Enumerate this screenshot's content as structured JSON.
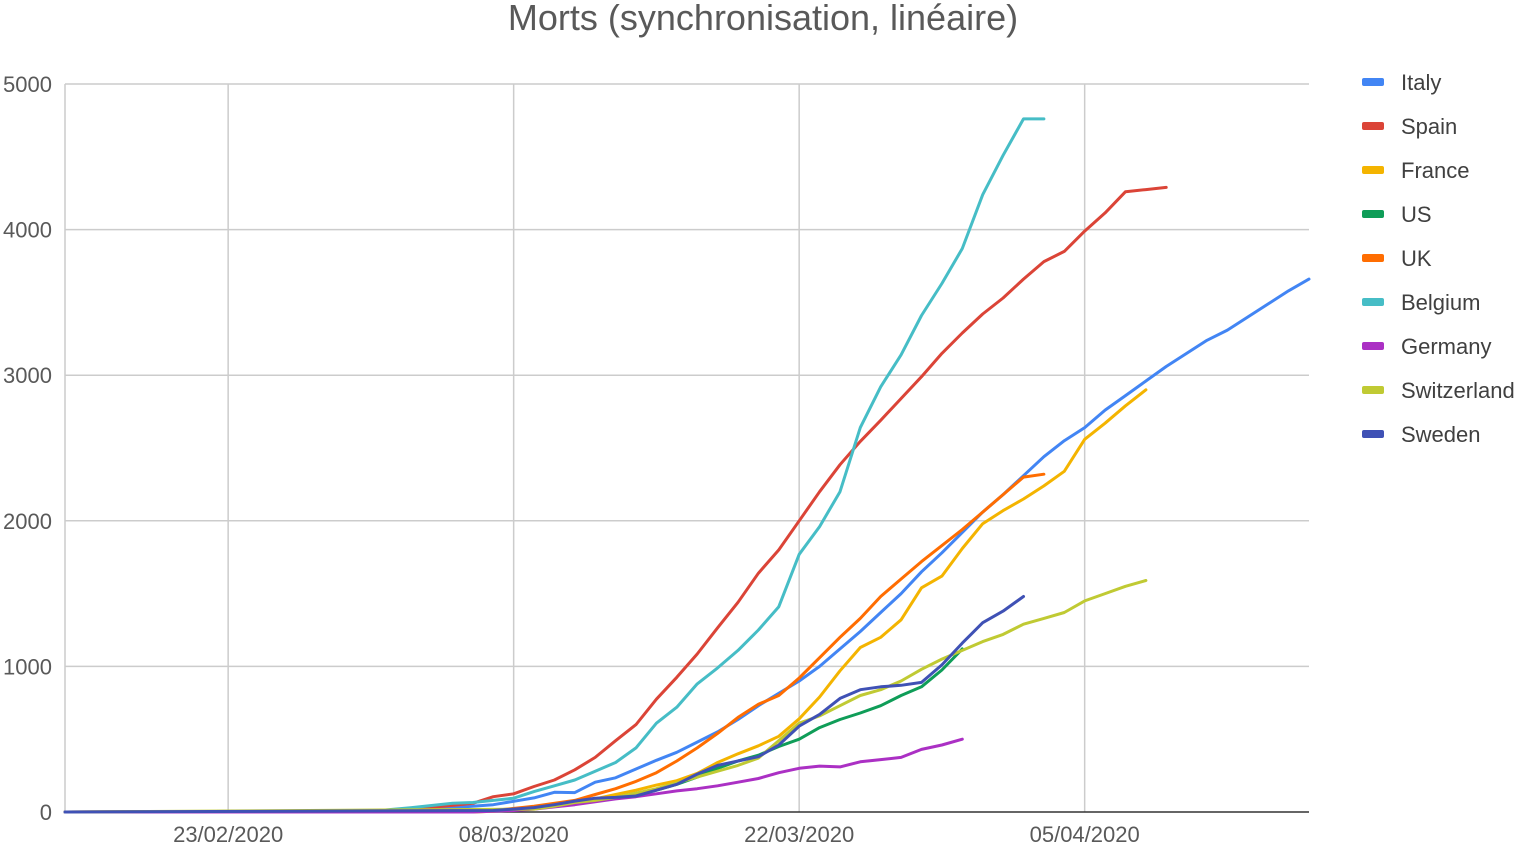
{
  "chart_data": {
    "type": "line",
    "title": "Morts (synchronisation, linéaire)",
    "xlabel": "",
    "ylabel": "",
    "x_start": "2020-02-15",
    "x_end": "2020-04-16",
    "x_ticks": [
      "23/02/2020",
      "08/03/2020",
      "22/03/2020",
      "05/04/2020"
    ],
    "ylim": [
      0,
      5000
    ],
    "y_ticks": [
      "0",
      "1000",
      "2000",
      "3000",
      "4000",
      "5000"
    ],
    "grid": true,
    "legend_position": "right",
    "series": [
      {
        "name": "Italy",
        "color": "#4285f4",
        "x": [
          "2020-02-15",
          "2020-02-28",
          "2020-03-01",
          "2020-03-03",
          "2020-03-05",
          "2020-03-07",
          "2020-03-09",
          "2020-03-10",
          "2020-03-11",
          "2020-03-12",
          "2020-03-13",
          "2020-03-14",
          "2020-03-15",
          "2020-03-16",
          "2020-03-17",
          "2020-03-18",
          "2020-03-19",
          "2020-03-20",
          "2020-03-21",
          "2020-03-22",
          "2020-03-23",
          "2020-03-24",
          "2020-03-25",
          "2020-03-26",
          "2020-03-27",
          "2020-03-28",
          "2020-03-29",
          "2020-03-30",
          "2020-03-31",
          "2020-04-01",
          "2020-04-02",
          "2020-04-03",
          "2020-04-04",
          "2020-04-05",
          "2020-04-06",
          "2020-04-07",
          "2020-04-08",
          "2020-04-09",
          "2020-04-10",
          "2020-04-11",
          "2020-04-12",
          "2020-04-13",
          "2020-04-14",
          "2020-04-15",
          "2020-04-16"
        ],
        "y": [
          0,
          0,
          5,
          15,
          30,
          50,
          97,
          135,
          133,
          205,
          235,
          295,
          355,
          410,
          480,
          550,
          635,
          730,
          815,
          900,
          1000,
          1120,
          1240,
          1370,
          1500,
          1650,
          1780,
          1920,
          2060,
          2180,
          2310,
          2440,
          2550,
          2640,
          2760,
          2860,
          2960,
          3060,
          3150,
          3240,
          3310,
          3400,
          3490,
          3580,
          3660
        ]
      },
      {
        "name": "Spain",
        "color": "#db4437",
        "x": [
          "2020-02-15",
          "2020-03-01",
          "2020-03-03",
          "2020-03-05",
          "2020-03-06",
          "2020-03-07",
          "2020-03-08",
          "2020-03-09",
          "2020-03-10",
          "2020-03-11",
          "2020-03-12",
          "2020-03-13",
          "2020-03-14",
          "2020-03-15",
          "2020-03-16",
          "2020-03-17",
          "2020-03-18",
          "2020-03-19",
          "2020-03-20",
          "2020-03-21",
          "2020-03-22",
          "2020-03-23",
          "2020-03-24",
          "2020-03-25",
          "2020-03-26",
          "2020-03-27",
          "2020-03-28",
          "2020-03-29",
          "2020-03-30",
          "2020-03-31",
          "2020-04-01",
          "2020-04-02",
          "2020-04-03",
          "2020-04-04",
          "2020-04-05",
          "2020-04-06",
          "2020-04-07",
          "2020-04-08",
          "2020-04-09"
        ],
        "y": [
          0,
          5,
          20,
          45,
          60,
          105,
          125,
          175,
          220,
          290,
          375,
          490,
          600,
          775,
          925,
          1085,
          1265,
          1440,
          1640,
          1800,
          2000,
          2200,
          2385,
          2545,
          2690,
          2840,
          2990,
          3150,
          3290,
          3420,
          3530,
          3660,
          3780,
          3850,
          3990,
          4115,
          4260,
          4275,
          4290
        ]
      },
      {
        "name": "France",
        "color": "#f4b400",
        "x": [
          "2020-02-15",
          "2020-03-06",
          "2020-03-07",
          "2020-03-08",
          "2020-03-09",
          "2020-03-10",
          "2020-03-11",
          "2020-03-12",
          "2020-03-13",
          "2020-03-14",
          "2020-03-15",
          "2020-03-16",
          "2020-03-17",
          "2020-03-18",
          "2020-03-19",
          "2020-03-20",
          "2020-03-21",
          "2020-03-22",
          "2020-03-23",
          "2020-03-24",
          "2020-03-25",
          "2020-03-26",
          "2020-03-27",
          "2020-03-28",
          "2020-03-29",
          "2020-03-30",
          "2020-03-31",
          "2020-04-01",
          "2020-04-02",
          "2020-04-03",
          "2020-04-04",
          "2020-04-05",
          "2020-04-06",
          "2020-04-07",
          "2020-04-08"
        ],
        "y": [
          0,
          0,
          5,
          15,
          30,
          50,
          65,
          90,
          120,
          150,
          185,
          215,
          265,
          340,
          400,
          455,
          520,
          640,
          790,
          970,
          1130,
          1200,
          1320,
          1540,
          1620,
          1810,
          1980,
          2070,
          2150,
          2240,
          2340,
          2560,
          2670,
          2790,
          2900
        ]
      },
      {
        "name": "US",
        "color": "#0f9d58",
        "x": [
          "2020-03-14",
          "2020-03-15",
          "2020-03-16",
          "2020-03-17",
          "2020-03-18",
          "2020-03-19",
          "2020-03-20",
          "2020-03-21",
          "2020-03-22",
          "2020-03-23",
          "2020-03-24",
          "2020-03-25",
          "2020-03-26",
          "2020-03-27",
          "2020-03-28",
          "2020-03-29",
          "2020-03-30"
        ],
        "y": [
          120,
          150,
          190,
          240,
          300,
          350,
          390,
          450,
          500,
          580,
          635,
          680,
          730,
          800,
          860,
          975,
          1120
        ]
      },
      {
        "name": "UK",
        "color": "#ff6d01",
        "x": [
          "2020-02-15",
          "2020-03-07",
          "2020-03-09",
          "2020-03-11",
          "2020-03-12",
          "2020-03-13",
          "2020-03-14",
          "2020-03-15",
          "2020-03-16",
          "2020-03-17",
          "2020-03-18",
          "2020-03-19",
          "2020-03-20",
          "2020-03-21",
          "2020-03-22",
          "2020-03-23",
          "2020-03-24",
          "2020-03-25",
          "2020-03-26",
          "2020-03-27",
          "2020-03-28",
          "2020-03-29",
          "2020-03-30",
          "2020-03-31",
          "2020-04-01",
          "2020-04-02",
          "2020-04-03"
        ],
        "y": [
          0,
          10,
          40,
          80,
          120,
          160,
          210,
          270,
          350,
          440,
          540,
          650,
          740,
          800,
          920,
          1060,
          1200,
          1330,
          1480,
          1600,
          1720,
          1830,
          1940,
          2060,
          2180,
          2300,
          2320
        ]
      },
      {
        "name": "Belgium",
        "color": "#46bdc6",
        "x": [
          "2020-02-15",
          "2020-03-01",
          "2020-03-03",
          "2020-03-05",
          "2020-03-06",
          "2020-03-07",
          "2020-03-08",
          "2020-03-09",
          "2020-03-10",
          "2020-03-11",
          "2020-03-12",
          "2020-03-13",
          "2020-03-14",
          "2020-03-15",
          "2020-03-16",
          "2020-03-17",
          "2020-03-18",
          "2020-03-19",
          "2020-03-20",
          "2020-03-21",
          "2020-03-22",
          "2020-03-23",
          "2020-03-24",
          "2020-03-25",
          "2020-03-26",
          "2020-03-27",
          "2020-03-28",
          "2020-03-29",
          "2020-03-30",
          "2020-03-31",
          "2020-04-01",
          "2020-04-02",
          "2020-04-03"
        ],
        "y": [
          0,
          5,
          30,
          60,
          65,
          80,
          95,
          140,
          180,
          220,
          280,
          340,
          440,
          610,
          720,
          880,
          990,
          1110,
          1250,
          1410,
          1770,
          1960,
          2200,
          2640,
          2920,
          3140,
          3410,
          3630,
          3870,
          4240,
          4510,
          4760,
          4760
        ]
      },
      {
        "name": "Germany",
        "color": "#ab30c4",
        "x": [
          "2020-02-15",
          "2020-03-06",
          "2020-03-08",
          "2020-03-09",
          "2020-03-10",
          "2020-03-11",
          "2020-03-12",
          "2020-03-13",
          "2020-03-14",
          "2020-03-15",
          "2020-03-16",
          "2020-03-17",
          "2020-03-18",
          "2020-03-19",
          "2020-03-20",
          "2020-03-21",
          "2020-03-22",
          "2020-03-23",
          "2020-03-24",
          "2020-03-25",
          "2020-03-26",
          "2020-03-27",
          "2020-03-28",
          "2020-03-29",
          "2020-03-30"
        ],
        "y": [
          0,
          0,
          10,
          20,
          35,
          50,
          70,
          90,
          105,
          125,
          145,
          160,
          180,
          205,
          230,
          270,
          300,
          315,
          310,
          345,
          360,
          375,
          430,
          460,
          500
        ]
      },
      {
        "name": "Switzerland",
        "color": "#c0ca33",
        "x": [
          "2020-02-15",
          "2020-03-09",
          "2020-03-10",
          "2020-03-11",
          "2020-03-12",
          "2020-03-13",
          "2020-03-14",
          "2020-03-15",
          "2020-03-16",
          "2020-03-17",
          "2020-03-18",
          "2020-03-19",
          "2020-03-20",
          "2020-03-21",
          "2020-03-22",
          "2020-03-23",
          "2020-03-24",
          "2020-03-25",
          "2020-03-26",
          "2020-03-27",
          "2020-03-28",
          "2020-03-29",
          "2020-03-30",
          "2020-03-31",
          "2020-04-01",
          "2020-04-02",
          "2020-04-03",
          "2020-04-04",
          "2020-04-05",
          "2020-04-06",
          "2020-04-07",
          "2020-04-08"
        ],
        "y": [
          0,
          20,
          40,
          65,
          80,
          100,
          130,
          160,
          200,
          240,
          280,
          320,
          370,
          490,
          610,
          660,
          730,
          800,
          840,
          900,
          980,
          1050,
          1110,
          1170,
          1220,
          1290,
          1330,
          1370,
          1450,
          1500,
          1550,
          1590
        ]
      },
      {
        "name": "Sweden",
        "color": "#3f51b5",
        "x": [
          "2020-02-15",
          "2020-03-07",
          "2020-03-09",
          "2020-03-10",
          "2020-03-11",
          "2020-03-12",
          "2020-03-13",
          "2020-03-14",
          "2020-03-15",
          "2020-03-16",
          "2020-03-17",
          "2020-03-18",
          "2020-03-19",
          "2020-03-20",
          "2020-03-21",
          "2020-03-22",
          "2020-03-23",
          "2020-03-24",
          "2020-03-25",
          "2020-03-26",
          "2020-03-27",
          "2020-03-28",
          "2020-03-29",
          "2020-03-30",
          "2020-03-31",
          "2020-04-01",
          "2020-04-02"
        ],
        "y": [
          0,
          10,
          30,
          50,
          75,
          95,
          100,
          110,
          150,
          190,
          260,
          320,
          350,
          380,
          460,
          590,
          670,
          780,
          840,
          860,
          870,
          890,
          1010,
          1160,
          1300,
          1380,
          1480
        ]
      }
    ]
  }
}
